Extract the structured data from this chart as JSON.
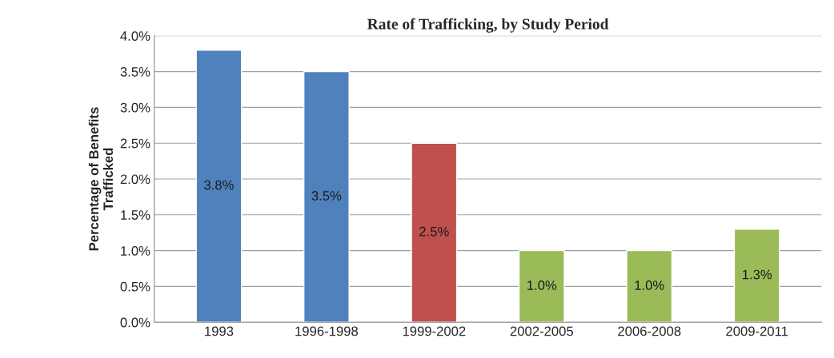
{
  "chart_data": {
    "type": "bar",
    "title": "Rate of Trafficking, by Study Period",
    "ylabel": "Percentage of Benefits\nTrafficked",
    "categories": [
      "1993",
      "1996-1998",
      "1999-2002",
      "2002-2005",
      "2006-2008",
      "2009-2011"
    ],
    "values": [
      3.8,
      3.5,
      2.5,
      1.0,
      1.0,
      1.3
    ],
    "colors": [
      "#4f81bd",
      "#4f81bd",
      "#c0504d",
      "#9bbb59",
      "#9bbb59",
      "#9bbb59"
    ],
    "value_labels": [
      "3.8%",
      "3.5%",
      "2.5%",
      "1.0%",
      "1.0%",
      "1.3%"
    ],
    "ylim": [
      0,
      4
    ],
    "yticks": [
      {
        "value": 0,
        "label": "0.0%"
      },
      {
        "value": 0.5,
        "label": "0.5%"
      },
      {
        "value": 1,
        "label": "1.0%"
      },
      {
        "value": 1.5,
        "label": "1.5%"
      },
      {
        "value": 2,
        "label": "2.0%"
      },
      {
        "value": 2.5,
        "label": "2.5%"
      },
      {
        "value": 3,
        "label": "3.0%"
      },
      {
        "value": 3.5,
        "label": "3.5%"
      },
      {
        "value": 4,
        "label": "4.0%"
      }
    ],
    "grid": "y",
    "legend": false
  }
}
